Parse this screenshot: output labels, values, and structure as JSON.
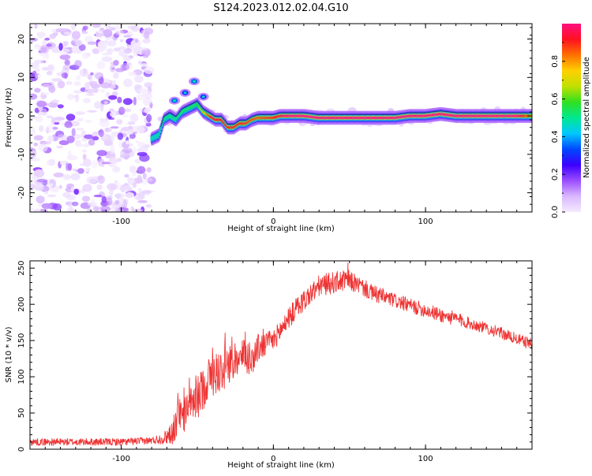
{
  "figure": {
    "title": "S124.2023.012.02.04.G10"
  },
  "colorbar": {
    "label": "Normalized spectral amplitude",
    "ticks": [
      0.0,
      0.2,
      0.4,
      0.6,
      0.8
    ],
    "tick_labels": [
      "0.0",
      "0.2",
      "0.4",
      "0.6",
      "0.8"
    ],
    "range": [
      0,
      1
    ],
    "colormap": [
      "#f4eaff",
      "#d9b8ff",
      "#9b4dff",
      "#3b00ff",
      "#0048ff",
      "#00c8ff",
      "#00e890",
      "#30e020",
      "#c0e000",
      "#ffd000",
      "#ff7000",
      "#ff1020",
      "#ff1080"
    ]
  },
  "colors": {
    "snr_line": "#ee3333",
    "frame": "#000000",
    "ridge_outline": "#222222"
  },
  "chart_data": [
    {
      "type": "heatmap",
      "title": "S124.2023.012.02.04.G10",
      "xlabel": "Height of straight line (km)",
      "ylabel": "Frequency (Hz)",
      "xlim": [
        -160,
        170
      ],
      "ylim": [
        -25,
        24
      ],
      "xticks": [
        -100,
        0,
        100
      ],
      "yticks": [
        -20,
        -10,
        0,
        10,
        20
      ],
      "grid": false,
      "noise_region_x": [
        -160,
        -80
      ],
      "ridge": {
        "x": [
          -80,
          -75,
          -72,
          -68,
          -64,
          -60,
          -55,
          -50,
          -46,
          -42,
          -38,
          -34,
          -30,
          -26,
          -22,
          -18,
          -14,
          -10,
          -5,
          0,
          5,
          10,
          20,
          30,
          40,
          50,
          60,
          70,
          80,
          90,
          100,
          110,
          120,
          130,
          140,
          150,
          160,
          170
        ],
        "y": [
          -6,
          -5,
          -1,
          0,
          -1,
          1,
          2,
          3,
          1,
          0,
          -1,
          -1,
          -3,
          -3,
          -2,
          -2,
          -1,
          -0.5,
          -0.5,
          -0.5,
          0,
          0,
          0,
          -0.5,
          -0.5,
          -0.5,
          -0.5,
          -0.5,
          -0.5,
          0,
          0,
          0.5,
          0,
          0,
          0,
          0,
          0,
          0
        ]
      },
      "peak_amplitude_by_x": [
        {
          "x": -80,
          "a": 0.45
        },
        {
          "x": -70,
          "a": 0.5
        },
        {
          "x": -50,
          "a": 0.55
        },
        {
          "x": -40,
          "a": 0.95
        },
        {
          "x": -30,
          "a": 0.9
        },
        {
          "x": -20,
          "a": 0.9
        },
        {
          "x": -10,
          "a": 0.85
        },
        {
          "x": 0,
          "a": 0.9
        },
        {
          "x": 10,
          "a": 1.0
        },
        {
          "x": 20,
          "a": 1.0
        },
        {
          "x": 40,
          "a": 1.0
        },
        {
          "x": 60,
          "a": 1.0
        },
        {
          "x": 80,
          "a": 1.0
        },
        {
          "x": 100,
          "a": 1.0
        },
        {
          "x": 120,
          "a": 1.0
        },
        {
          "x": 140,
          "a": 1.0
        },
        {
          "x": 160,
          "a": 1.0
        },
        {
          "x": 170,
          "a": 0.8
        }
      ],
      "side_features": [
        {
          "x": -65,
          "y": 4,
          "a": 0.35
        },
        {
          "x": -58,
          "y": 6,
          "a": 0.3
        },
        {
          "x": -52,
          "y": 9,
          "a": 0.35
        },
        {
          "x": -46,
          "y": 5,
          "a": 0.3
        }
      ]
    },
    {
      "type": "line",
      "xlabel": "Height of straight line (km)",
      "ylabel": "SNR (10 * v/v)",
      "xlim": [
        -160,
        170
      ],
      "ylim": [
        0,
        260
      ],
      "xticks": [
        -100,
        0,
        100
      ],
      "yticks": [
        0,
        50,
        100,
        150,
        200,
        250
      ],
      "grid": false,
      "series": [
        {
          "color": "#ee3333",
          "envelope_x": [
            -160,
            -140,
            -120,
            -100,
            -80,
            -72,
            -66,
            -62,
            -58,
            -54,
            -50,
            -46,
            -42,
            -38,
            -34,
            -30,
            -26,
            -22,
            -18,
            -14,
            -10,
            -5,
            0,
            5,
            10,
            15,
            20,
            25,
            30,
            35,
            40,
            45,
            50,
            55,
            60,
            65,
            70,
            80,
            90,
            100,
            110,
            120,
            130,
            140,
            150,
            160,
            170
          ],
          "envelope_mean": [
            10,
            10,
            10,
            10,
            12,
            15,
            25,
            45,
            50,
            60,
            70,
            85,
            100,
            105,
            110,
            115,
            120,
            125,
            130,
            125,
            140,
            145,
            150,
            165,
            180,
            195,
            205,
            215,
            225,
            228,
            230,
            232,
            232,
            228,
            222,
            215,
            212,
            205,
            198,
            192,
            185,
            180,
            173,
            167,
            160,
            152,
            145
          ],
          "envelope_noise": [
            5,
            5,
            5,
            5,
            5,
            8,
            18,
            25,
            25,
            25,
            30,
            30,
            30,
            30,
            30,
            30,
            25,
            25,
            25,
            25,
            20,
            18,
            15,
            15,
            15,
            15,
            15,
            15,
            15,
            15,
            15,
            15,
            15,
            12,
            12,
            12,
            12,
            10,
            10,
            10,
            10,
            10,
            8,
            8,
            8,
            8,
            8
          ],
          "peak_max": 257
        }
      ]
    }
  ]
}
